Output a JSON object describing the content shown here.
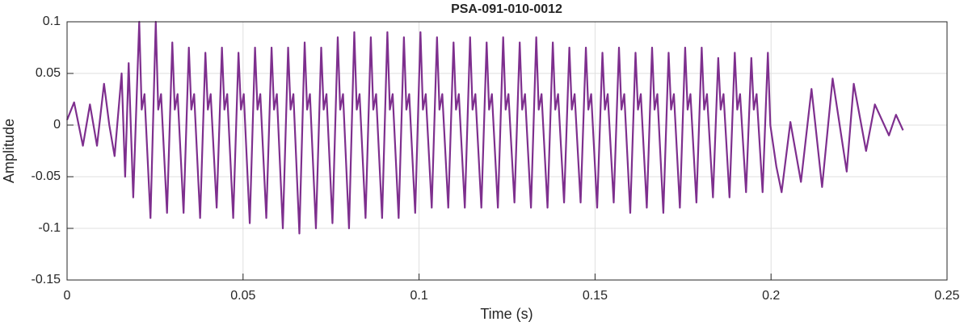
{
  "chart_data": {
    "type": "line",
    "title": "PSA-091-010-0012",
    "xlabel": "Time (s)",
    "ylabel": "Amplitude",
    "color": "#7e2f8e",
    "grid": true,
    "xlim": [
      0,
      0.25
    ],
    "xticks": [
      0,
      0.05,
      0.1,
      0.15,
      0.2,
      0.25
    ],
    "ylim": [
      -0.15,
      0.1
    ],
    "yticks": [
      -0.15,
      -0.1,
      -0.05,
      0,
      0.05,
      0.1
    ],
    "x": [
      0,
      0.002,
      0.0045,
      0.0065,
      0.0085,
      0.0105,
      0.012,
      0.0135,
      0.0155,
      0.0165,
      0.0175,
      0.0188,
      0.0205,
      0.0212,
      0.022,
      0.0237,
      0.0252,
      0.0259,
      0.0267,
      0.0284,
      0.0299,
      0.0306,
      0.0314,
      0.0331,
      0.0346,
      0.0353,
      0.0361,
      0.0378,
      0.0393,
      0.04,
      0.0408,
      0.0425,
      0.044,
      0.0447,
      0.0455,
      0.0472,
      0.0487,
      0.0494,
      0.0502,
      0.0519,
      0.0534,
      0.0541,
      0.0549,
      0.0566,
      0.0581,
      0.0588,
      0.0596,
      0.0613,
      0.0628,
      0.0635,
      0.0643,
      0.066,
      0.0675,
      0.0682,
      0.069,
      0.0707,
      0.0722,
      0.0729,
      0.0737,
      0.0754,
      0.0769,
      0.0776,
      0.0784,
      0.0801,
      0.0816,
      0.0823,
      0.0831,
      0.0848,
      0.0863,
      0.087,
      0.0878,
      0.0895,
      0.091,
      0.0917,
      0.0925,
      0.0942,
      0.0957,
      0.0964,
      0.0972,
      0.0989,
      0.1004,
      0.1011,
      0.1019,
      0.1036,
      0.1051,
      0.1058,
      0.1066,
      0.1083,
      0.1098,
      0.1105,
      0.1113,
      0.113,
      0.1145,
      0.1152,
      0.116,
      0.1177,
      0.1192,
      0.1199,
      0.1207,
      0.1224,
      0.1239,
      0.1246,
      0.1254,
      0.1271,
      0.1286,
      0.1293,
      0.1301,
      0.1318,
      0.1333,
      0.134,
      0.1348,
      0.1365,
      0.138,
      0.1387,
      0.1395,
      0.1412,
      0.1427,
      0.1434,
      0.1442,
      0.1459,
      0.1474,
      0.1481,
      0.1489,
      0.1506,
      0.1521,
      0.1528,
      0.1536,
      0.1553,
      0.1568,
      0.1575,
      0.1583,
      0.16,
      0.1615,
      0.1622,
      0.163,
      0.1647,
      0.1662,
      0.1669,
      0.1677,
      0.1694,
      0.1709,
      0.1716,
      0.1724,
      0.1741,
      0.1756,
      0.1763,
      0.1771,
      0.1788,
      0.1803,
      0.181,
      0.1818,
      0.1835,
      0.185,
      0.1857,
      0.1865,
      0.1882,
      0.1897,
      0.1904,
      0.1912,
      0.1929,
      0.1944,
      0.1951,
      0.1959,
      0.1976,
      0.1991,
      0.1998,
      0.2015,
      0.203,
      0.2055,
      0.2085,
      0.2115,
      0.2145,
      0.2175,
      0.2215,
      0.2235,
      0.227,
      0.2295,
      0.2335,
      0.2355,
      0.2375
    ],
    "values": [
      0.005,
      0.022,
      -0.02,
      0.02,
      -0.02,
      0.04,
      0,
      -0.03,
      0.05,
      -0.05,
      0.06,
      -0.07,
      0.1,
      0.015,
      0.03,
      -0.09,
      0.1,
      0.015,
      0.03,
      -0.085,
      0.08,
      0.015,
      0.03,
      -0.085,
      0.075,
      0.015,
      0.03,
      -0.09,
      0.07,
      0.015,
      0.03,
      -0.08,
      0.075,
      0.015,
      0.03,
      -0.09,
      0.07,
      0.015,
      0.03,
      -0.095,
      0.075,
      0.015,
      0.03,
      -0.09,
      0.075,
      0.015,
      0.03,
      -0.1,
      0.075,
      0.015,
      0.03,
      -0.105,
      0.08,
      0.015,
      0.03,
      -0.1,
      0.075,
      0.015,
      0.03,
      -0.095,
      0.085,
      0.015,
      0.03,
      -0.1,
      0.09,
      0.015,
      0.03,
      -0.09,
      0.085,
      0.015,
      0.03,
      -0.09,
      0.09,
      0.015,
      0.03,
      -0.09,
      0.085,
      0.015,
      0.03,
      -0.085,
      0.09,
      0.015,
      0.03,
      -0.08,
      0.085,
      0.015,
      0.03,
      -0.08,
      0.08,
      0.015,
      0.03,
      -0.08,
      0.085,
      0.015,
      0.03,
      -0.08,
      0.08,
      0.015,
      0.03,
      -0.08,
      0.085,
      0.015,
      0.03,
      -0.075,
      0.08,
      0.015,
      0.03,
      -0.08,
      0.085,
      0.015,
      0.03,
      -0.08,
      0.08,
      0.015,
      0.03,
      -0.075,
      0.075,
      0.015,
      0.03,
      -0.075,
      0.075,
      0.015,
      0.03,
      -0.08,
      0.07,
      0.015,
      0.03,
      -0.075,
      0.075,
      0.015,
      0.03,
      -0.085,
      0.07,
      0.015,
      0.03,
      -0.08,
      0.075,
      0.015,
      0.03,
      -0.085,
      0.07,
      0.015,
      0.03,
      -0.08,
      0.075,
      0.015,
      0.03,
      -0.075,
      0.075,
      0.015,
      0.03,
      -0.07,
      0.065,
      0.015,
      0.03,
      -0.07,
      0.07,
      0.015,
      0.03,
      -0.065,
      0.065,
      0.015,
      0.03,
      -0.065,
      0.07,
      0,
      -0.04,
      -0.065,
      0.003,
      -0.055,
      0.035,
      -0.06,
      0.045,
      -0.045,
      0.04,
      -0.025,
      0.02,
      -0.01,
      0.01,
      -0.005
    ]
  }
}
